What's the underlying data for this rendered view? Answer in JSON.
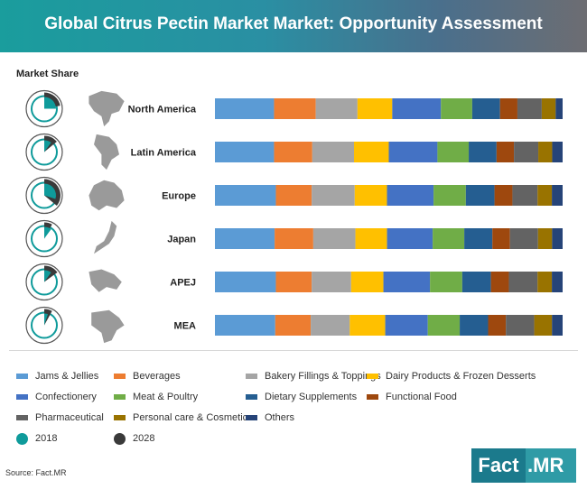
{
  "header": {
    "title": "Global Citrus Pectin Market Market: Opportunity Assessment"
  },
  "market_share_label": "Market Share",
  "source": "Source: Fact.MR",
  "logo": {
    "left": "Fact",
    "right": ".MR"
  },
  "colors": {
    "share_2018": "#0f9b9b",
    "share_2028": "#3a3a3a",
    "map": "#9a9a9a"
  },
  "legend_years": [
    {
      "label": "2018",
      "color": "#0f9b9b"
    },
    {
      "label": "2028",
      "color": "#3a3a3a"
    }
  ],
  "chart_data": {
    "type": "bar",
    "orientation": "horizontal",
    "stacked": true,
    "percent": true,
    "categories": [
      "North America",
      "Latin America",
      "Europe",
      "Japan",
      "APEJ",
      "MEA"
    ],
    "series": [
      {
        "name": "Jams & Jellies",
        "color": "#5b9bd5",
        "values": [
          17,
          17,
          17,
          17,
          17,
          17
        ]
      },
      {
        "name": "Beverages",
        "color": "#ed7d31",
        "values": [
          12,
          11,
          10,
          11,
          10,
          10
        ]
      },
      {
        "name": "Bakery Fillings & Toppings",
        "color": "#a5a5a5",
        "values": [
          12,
          12,
          12,
          12,
          11,
          11
        ]
      },
      {
        "name": "Dairy Products & Frozen Desserts",
        "color": "#ffc000",
        "values": [
          10,
          10,
          9,
          9,
          9,
          10
        ]
      },
      {
        "name": "Confectionery",
        "color": "#4472c4",
        "values": [
          14,
          14,
          13,
          13,
          13,
          12
        ]
      },
      {
        "name": "Meat & Poultry",
        "color": "#70ad47",
        "values": [
          9,
          9,
          9,
          9,
          9,
          9
        ]
      },
      {
        "name": "Dietary Supplements",
        "color": "#255e91",
        "values": [
          8,
          8,
          8,
          8,
          8,
          8
        ]
      },
      {
        "name": "Functional Food",
        "color": "#9e480e",
        "values": [
          5,
          5,
          5,
          5,
          5,
          5
        ]
      },
      {
        "name": "Pharmaceutical",
        "color": "#636363",
        "values": [
          7,
          7,
          7,
          8,
          8,
          8
        ]
      },
      {
        "name": "Personal care & Cosmetics",
        "color": "#997300",
        "values": [
          4,
          4,
          4,
          4,
          4,
          5
        ]
      },
      {
        "name": "Others",
        "color": "#264478",
        "values": [
          2,
          3,
          3,
          3,
          3,
          3
        ]
      }
    ],
    "market_share": {
      "2018": [
        25,
        10,
        30,
        10,
        10,
        5
      ],
      "2028": [
        22,
        14,
        36,
        8,
        15,
        8
      ]
    },
    "legend_position": "bottom"
  }
}
